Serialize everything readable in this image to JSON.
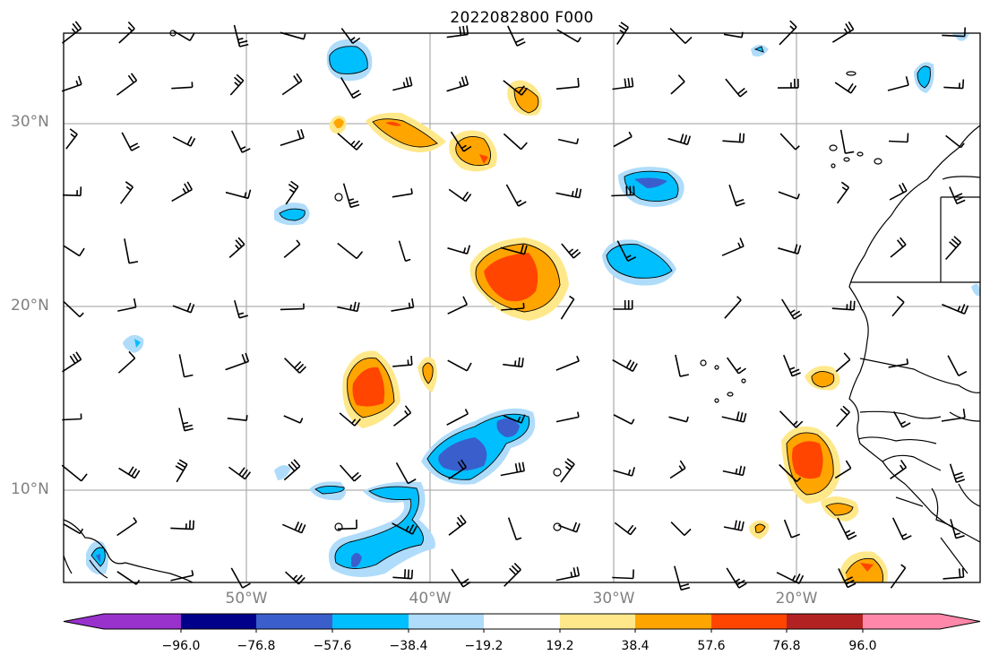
{
  "title": "2022082800 F000",
  "lat_labels": [
    "30°N",
    "20°N",
    "10°N"
  ],
  "lon_labels": [
    "50°W",
    "40°W",
    "30°W",
    "20°W"
  ],
  "colorbar": {
    "ticks": [
      "−96.0",
      "−76.8",
      "−57.6",
      "−38.4",
      "−19.2",
      "19.2",
      "38.4",
      "57.6",
      "76.8",
      "96.0"
    ],
    "colors": [
      "#9932cc",
      "#00008b",
      "#3a5fcd",
      "#00bfff",
      "#afdcfa",
      "#ffffff",
      "#ffe88a",
      "#ffa500",
      "#ff4500",
      "#b22222",
      "#ff88aa"
    ]
  }
}
